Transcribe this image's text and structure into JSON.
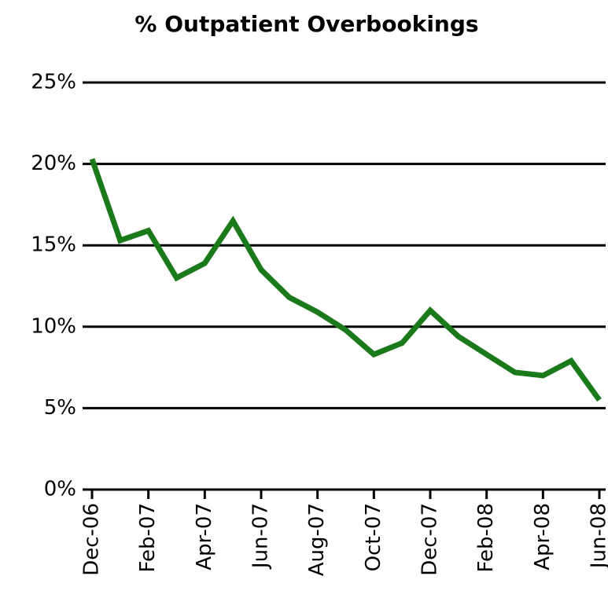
{
  "chart_data": {
    "type": "line",
    "title": "% Outpatient Overbookings",
    "categories": [
      "Dec-06",
      null,
      "Feb-07",
      null,
      "Apr-07",
      null,
      "Jun-07",
      null,
      "Aug-07",
      null,
      "Oct-07",
      null,
      "Dec-07",
      null,
      "Feb-08",
      null,
      "Apr-08",
      null,
      "Jun-08"
    ],
    "series": [
      {
        "name": "% Outpatient Overbookings",
        "color": "#1a7a1a",
        "values": [
          20.3,
          15.3,
          15.9,
          13.0,
          13.9,
          16.5,
          13.5,
          11.8,
          10.9,
          9.8,
          8.3,
          9.0,
          11.0,
          9.4,
          8.3,
          7.2,
          7.0,
          7.9,
          5.5
        ]
      }
    ],
    "ylim": [
      0,
      25
    ],
    "yticks": [
      {
        "value": 0,
        "label": "0%"
      },
      {
        "value": 5,
        "label": "5%"
      },
      {
        "value": 10,
        "label": "10%"
      },
      {
        "value": 15,
        "label": "15%"
      },
      {
        "value": 20,
        "label": "20%"
      },
      {
        "value": 25,
        "label": "25%"
      }
    ],
    "grid": true
  }
}
